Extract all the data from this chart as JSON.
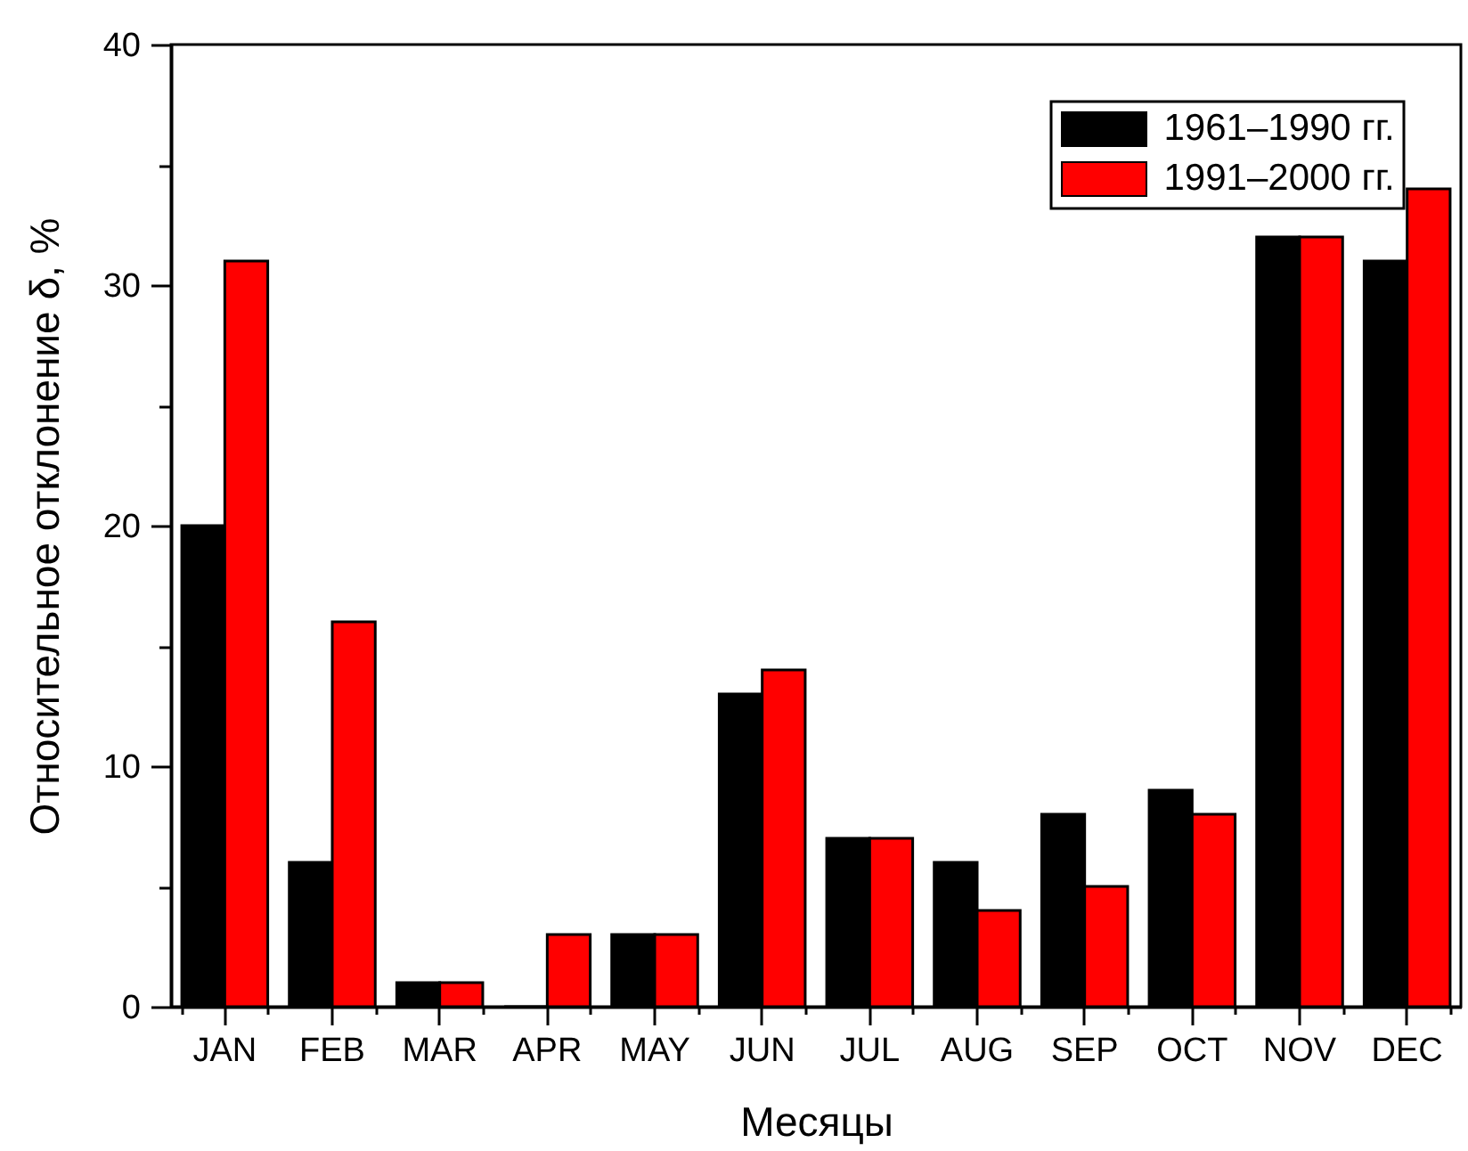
{
  "chart_data": {
    "type": "bar",
    "xlabel": "Месяцы",
    "ylabel": "Относительное отклонение δ, %",
    "categories": [
      "JAN",
      "FEB",
      "MAR",
      "APR",
      "MAY",
      "JUN",
      "JUL",
      "AUG",
      "SEP",
      "OCT",
      "NOV",
      "DEC"
    ],
    "series": [
      {
        "name": "1961–1990 гг.",
        "color": "#000000",
        "values": [
          20,
          6,
          1,
          0,
          3,
          13,
          7,
          6,
          8,
          9,
          32,
          31
        ]
      },
      {
        "name": "1991–2000 гг.",
        "color": "#ff0000",
        "values": [
          31,
          16,
          1,
          3,
          3,
          14,
          7,
          4,
          5,
          8,
          32,
          34
        ]
      }
    ],
    "ylim": [
      0,
      40
    ],
    "yticks": [
      0,
      {
        "value": 5,
        "label": null
      },
      10,
      {
        "value": 15,
        "label": null
      },
      20,
      {
        "value": 25,
        "label": null
      },
      30,
      {
        "value": 35,
        "label": null
      },
      40
    ],
    "legend": "top right"
  }
}
